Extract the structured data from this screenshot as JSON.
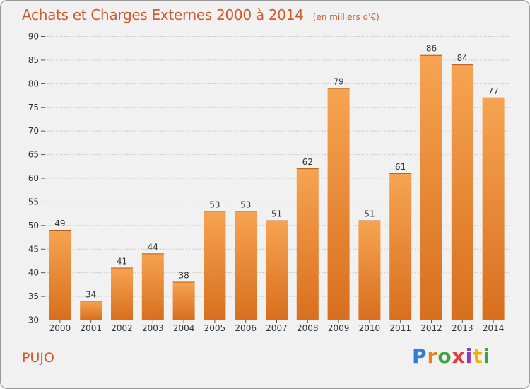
{
  "header": {
    "title": "Achats et Charges Externes 2000 à 2014",
    "unit": "(en milliers d'€)"
  },
  "footer": {
    "commune": "PUJO",
    "logo_letters": [
      "P",
      "r",
      "o",
      "x",
      "i",
      "t",
      "i"
    ]
  },
  "colors": {
    "accent": "#d45a2c",
    "bar_top": "#f6a452",
    "bar_bottom": "#d86f1e",
    "background": "#f1f1f1"
  },
  "chart_data": {
    "type": "bar",
    "categories": [
      "2000",
      "2001",
      "2002",
      "2003",
      "2004",
      "2005",
      "2006",
      "2007",
      "2008",
      "2009",
      "2010",
      "2011",
      "2012",
      "2013",
      "2014"
    ],
    "values": [
      49,
      34,
      41,
      44,
      38,
      53,
      53,
      51,
      62,
      79,
      51,
      61,
      86,
      84,
      77
    ],
    "title": "Achats et Charges Externes 2000 à 2014",
    "ylabel": "",
    "xlabel": "",
    "ylim": [
      30,
      90
    ],
    "yticks": [
      30,
      35,
      40,
      45,
      50,
      55,
      60,
      65,
      70,
      75,
      80,
      85,
      90
    ],
    "grid": true,
    "legend": "none"
  }
}
